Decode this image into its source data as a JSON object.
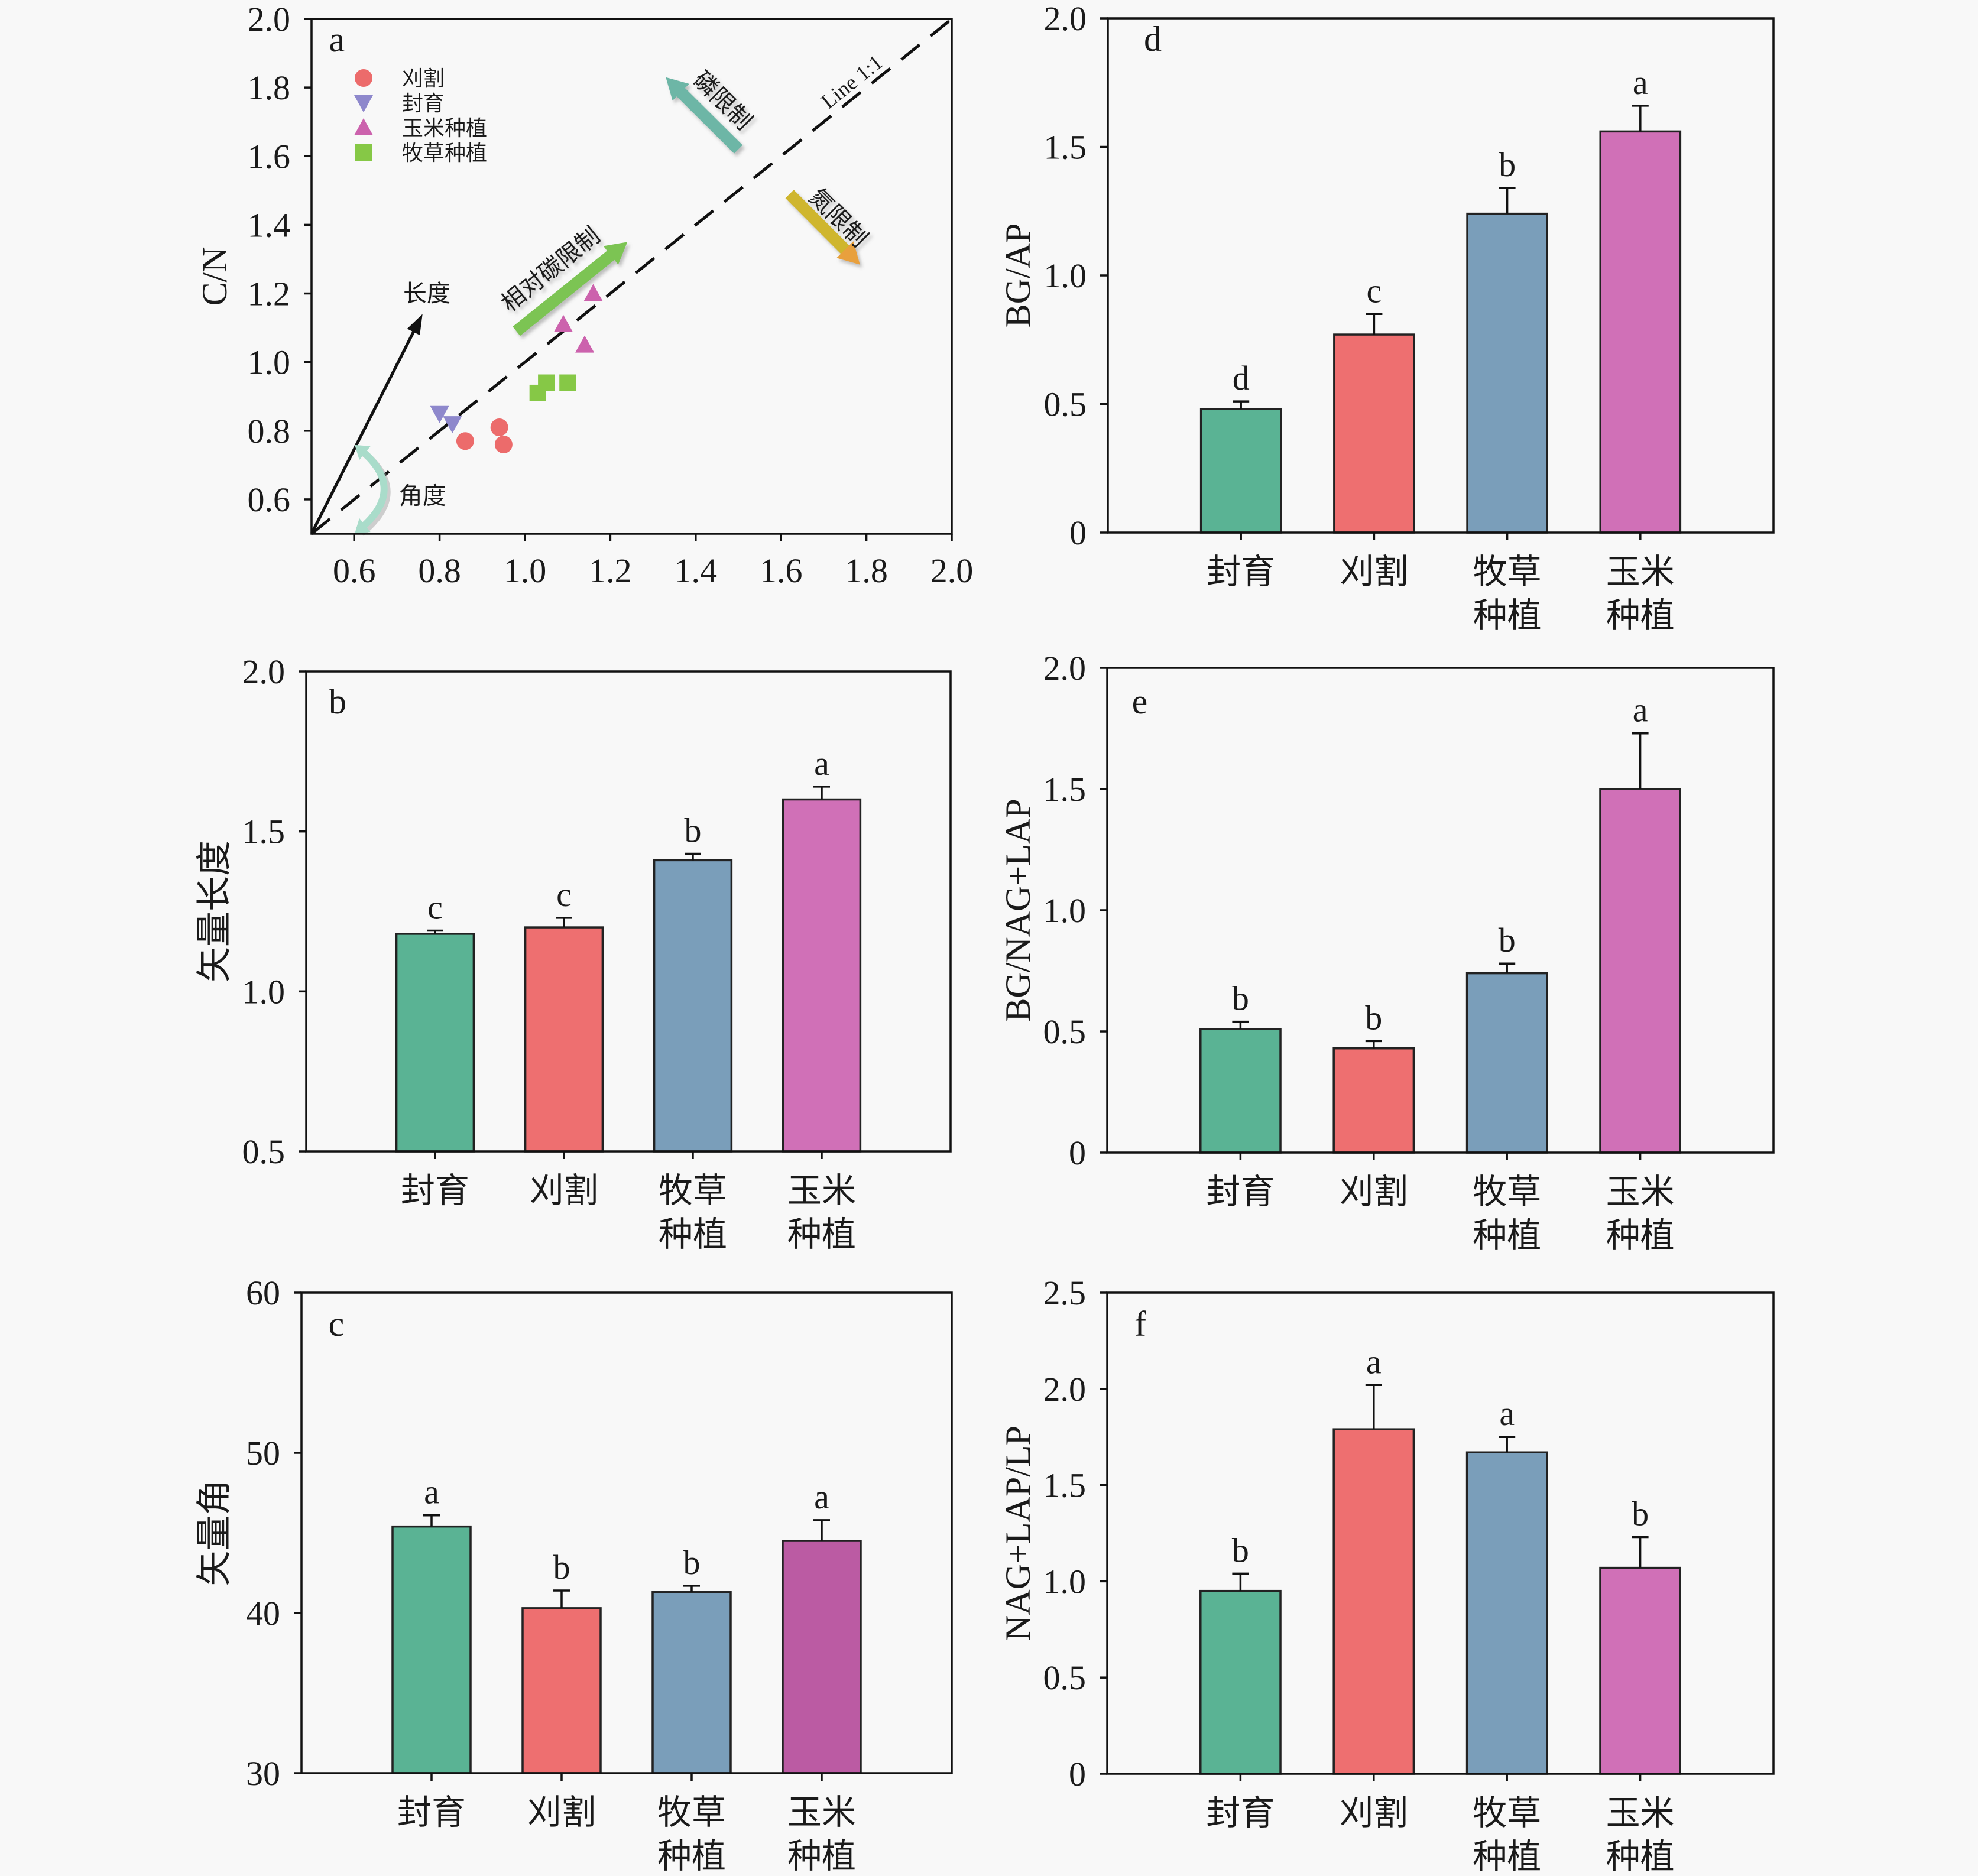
{
  "figure": {
    "background": "#f8f8f8"
  },
  "chart_data": [
    {
      "panel_label": "a",
      "type": "scatter",
      "title": "",
      "xlabel": "",
      "ylabel": "C/N",
      "xlim": [
        0.5,
        2.0
      ],
      "ylim": [
        0.5,
        2.0
      ],
      "xticks": [
        0.6,
        0.8,
        1.0,
        1.2,
        1.4,
        1.6,
        1.8,
        2.0
      ],
      "xtick_labels": [
        "0.6",
        "0.8",
        "1.0",
        "1.2",
        "1.4",
        "1.6",
        "1.8",
        "2.0"
      ],
      "yticks": [
        0.6,
        0.8,
        1.0,
        1.2,
        1.4,
        1.6,
        1.8,
        2.0
      ],
      "ytick_labels": [
        "0.6",
        "0.8",
        "1.0",
        "1.2",
        "1.4",
        "1.6",
        "1.8",
        "2.0"
      ],
      "grid": false,
      "legend": {
        "position": "top-left"
      },
      "series": [
        {
          "name": "刈割",
          "marker": "circle",
          "color": "#ec6b6b",
          "points": [
            [
              0.86,
              0.77
            ],
            [
              0.94,
              0.81
            ],
            [
              0.95,
              0.76
            ]
          ]
        },
        {
          "name": "封育",
          "marker": "triangle-down",
          "color": "#8e88cc",
          "points": [
            [
              0.8,
              0.85
            ],
            [
              0.83,
              0.82
            ]
          ]
        },
        {
          "name": "玉米种植",
          "marker": "triangle-up",
          "color": "#cc62ad",
          "points": [
            [
              1.09,
              1.11
            ],
            [
              1.14,
              1.05
            ],
            [
              1.16,
              1.2
            ]
          ]
        },
        {
          "name": "牧草种植",
          "marker": "square",
          "color": "#86c846",
          "points": [
            [
              1.03,
              0.91
            ],
            [
              1.05,
              0.94
            ],
            [
              1.1,
              0.94
            ]
          ]
        }
      ],
      "reference_line": {
        "label": "Line 1:1",
        "from": [
          0.5,
          0.5
        ],
        "to": [
          2.0,
          2.0
        ],
        "style": "dashed",
        "color": "#111111",
        "label_at": [
          1.766,
          1.817
        ]
      },
      "annotations": [
        {
          "id": "length",
          "text": "长度",
          "type": "arrow",
          "from": [
            0.5,
            0.5
          ],
          "to": [
            0.76,
            1.14
          ],
          "color": "#111111",
          "label_at": [
            0.77,
            1.2
          ]
        },
        {
          "id": "angle",
          "text": "角度",
          "type": "curved-double-arrow",
          "from": [
            0.61,
            0.75
          ],
          "via": [
            0.73,
            0.63
          ],
          "to": [
            0.61,
            0.51
          ],
          "color": "#a9dcca",
          "label_at": [
            0.76,
            0.61
          ]
        },
        {
          "id": "relative-c-limit",
          "text": "相对碳限制",
          "type": "block-arrow",
          "from": [
            0.98,
            1.09
          ],
          "to": [
            1.24,
            1.35
          ],
          "color": "#7cc453",
          "label_at": [
            1.06,
            1.27
          ]
        },
        {
          "id": "p-limit",
          "text": "磷限制",
          "type": "block-arrow",
          "from": [
            1.5,
            1.62
          ],
          "to": [
            1.33,
            1.83
          ],
          "color": "#6db6a6",
          "label_at": [
            1.463,
            1.762
          ]
        },
        {
          "id": "n-limit",
          "text": "氮限制",
          "type": "block-arrow",
          "from": [
            1.62,
            1.49
          ],
          "to": [
            1.785,
            1.284
          ],
          "color": "#cfb62e",
          "head_color": "#e8a03c",
          "label_at": [
            1.734,
            1.421
          ]
        }
      ]
    },
    {
      "panel_label": "b",
      "type": "bar",
      "title": "",
      "xlabel": "",
      "ylabel": "矢量长度",
      "categories": [
        "封育",
        "刈割",
        "牧草种植",
        "玉米种植"
      ],
      "category_label_lines": [
        [
          "封育"
        ],
        [
          "刈割"
        ],
        [
          "牧草",
          "种植"
        ],
        [
          "玉米",
          "种植"
        ]
      ],
      "values": [
        1.18,
        1.2,
        1.41,
        1.6
      ],
      "errors": [
        0.01,
        0.03,
        0.02,
        0.04
      ],
      "significance": [
        "c",
        "c",
        "b",
        "a"
      ],
      "colors": [
        "#5ab394",
        "#ee6f70",
        "#7a9eba",
        "#d070b7"
      ],
      "ylim": [
        0.5,
        2.0
      ],
      "yticks": [
        0.5,
        1.0,
        1.5,
        2.0
      ],
      "ytick_labels": [
        "0.5",
        "1.0",
        "1.5",
        "2.0"
      ],
      "grid": false
    },
    {
      "panel_label": "c",
      "type": "bar",
      "title": "",
      "xlabel": "",
      "ylabel": "矢量角",
      "categories": [
        "封育",
        "刈割",
        "牧草种植",
        "玉米种植"
      ],
      "category_label_lines": [
        [
          "封育"
        ],
        [
          "刈割"
        ],
        [
          "牧草",
          "种植"
        ],
        [
          "玉米",
          "种植"
        ]
      ],
      "values": [
        45.4,
        40.3,
        41.3,
        44.5
      ],
      "errors": [
        0.7,
        1.1,
        0.4,
        1.3
      ],
      "significance": [
        "a",
        "b",
        "b",
        "a"
      ],
      "colors": [
        "#5ab394",
        "#ee6f70",
        "#7a9eba",
        "#bb5ba3"
      ],
      "ylim": [
        30,
        60
      ],
      "yticks": [
        30,
        40,
        50,
        60
      ],
      "ytick_labels": [
        "30",
        "40",
        "50",
        "60"
      ],
      "grid": false
    },
    {
      "panel_label": "d",
      "type": "bar",
      "title": "",
      "xlabel": "",
      "ylabel": "BG/AP",
      "categories": [
        "封育",
        "刈割",
        "牧草种植",
        "玉米种植"
      ],
      "category_label_lines": [
        [
          "封育"
        ],
        [
          "刈割"
        ],
        [
          "牧草",
          "种植"
        ],
        [
          "玉米",
          "种植"
        ]
      ],
      "values": [
        0.48,
        0.77,
        1.24,
        1.56
      ],
      "errors": [
        0.03,
        0.08,
        0.1,
        0.1
      ],
      "significance": [
        "d",
        "c",
        "b",
        "a"
      ],
      "colors": [
        "#5ab394",
        "#ee6f70",
        "#7a9eba",
        "#d070b7"
      ],
      "ylim": [
        0,
        2.0
      ],
      "yticks": [
        0,
        0.5,
        1.0,
        1.5,
        2.0
      ],
      "ytick_labels": [
        "0",
        "0.5",
        "1.0",
        "1.5",
        "2.0"
      ],
      "grid": false
    },
    {
      "panel_label": "e",
      "type": "bar",
      "title": "",
      "xlabel": "",
      "ylabel": "BG/NAG+LAP",
      "categories": [
        "封育",
        "刈割",
        "牧草种植",
        "玉米种植"
      ],
      "category_label_lines": [
        [
          "封育"
        ],
        [
          "刈割"
        ],
        [
          "牧草",
          "种植"
        ],
        [
          "玉米",
          "种植"
        ]
      ],
      "values": [
        0.51,
        0.43,
        0.74,
        1.5
      ],
      "errors": [
        0.03,
        0.03,
        0.04,
        0.23
      ],
      "significance": [
        "b",
        "b",
        "b",
        "a"
      ],
      "colors": [
        "#5ab394",
        "#ee6f70",
        "#7a9eba",
        "#d070b7"
      ],
      "ylim": [
        0,
        2.0
      ],
      "yticks": [
        0,
        0.5,
        1.0,
        1.5,
        2.0
      ],
      "ytick_labels": [
        "0",
        "0.5",
        "1.0",
        "1.5",
        "2.0"
      ],
      "grid": false
    },
    {
      "panel_label": "f",
      "type": "bar",
      "title": "",
      "xlabel": "",
      "ylabel": "NAG+LAP/LP",
      "categories": [
        "封育",
        "刈割",
        "牧草种植",
        "玉米种植"
      ],
      "category_label_lines": [
        [
          "封育"
        ],
        [
          "刈割"
        ],
        [
          "牧草",
          "种植"
        ],
        [
          "玉米",
          "种植"
        ]
      ],
      "values": [
        0.95,
        1.79,
        1.67,
        1.07
      ],
      "errors": [
        0.09,
        0.23,
        0.08,
        0.16
      ],
      "significance": [
        "b",
        "a",
        "a",
        "b"
      ],
      "colors": [
        "#5ab394",
        "#ee6f70",
        "#7a9eba",
        "#d070b7"
      ],
      "ylim": [
        0,
        2.5
      ],
      "yticks": [
        0,
        0.5,
        1.0,
        1.5,
        2.0,
        2.5
      ],
      "ytick_labels": [
        "0",
        "0.5",
        "1.0",
        "1.5",
        "2.0",
        "2.5"
      ],
      "grid": false
    }
  ]
}
